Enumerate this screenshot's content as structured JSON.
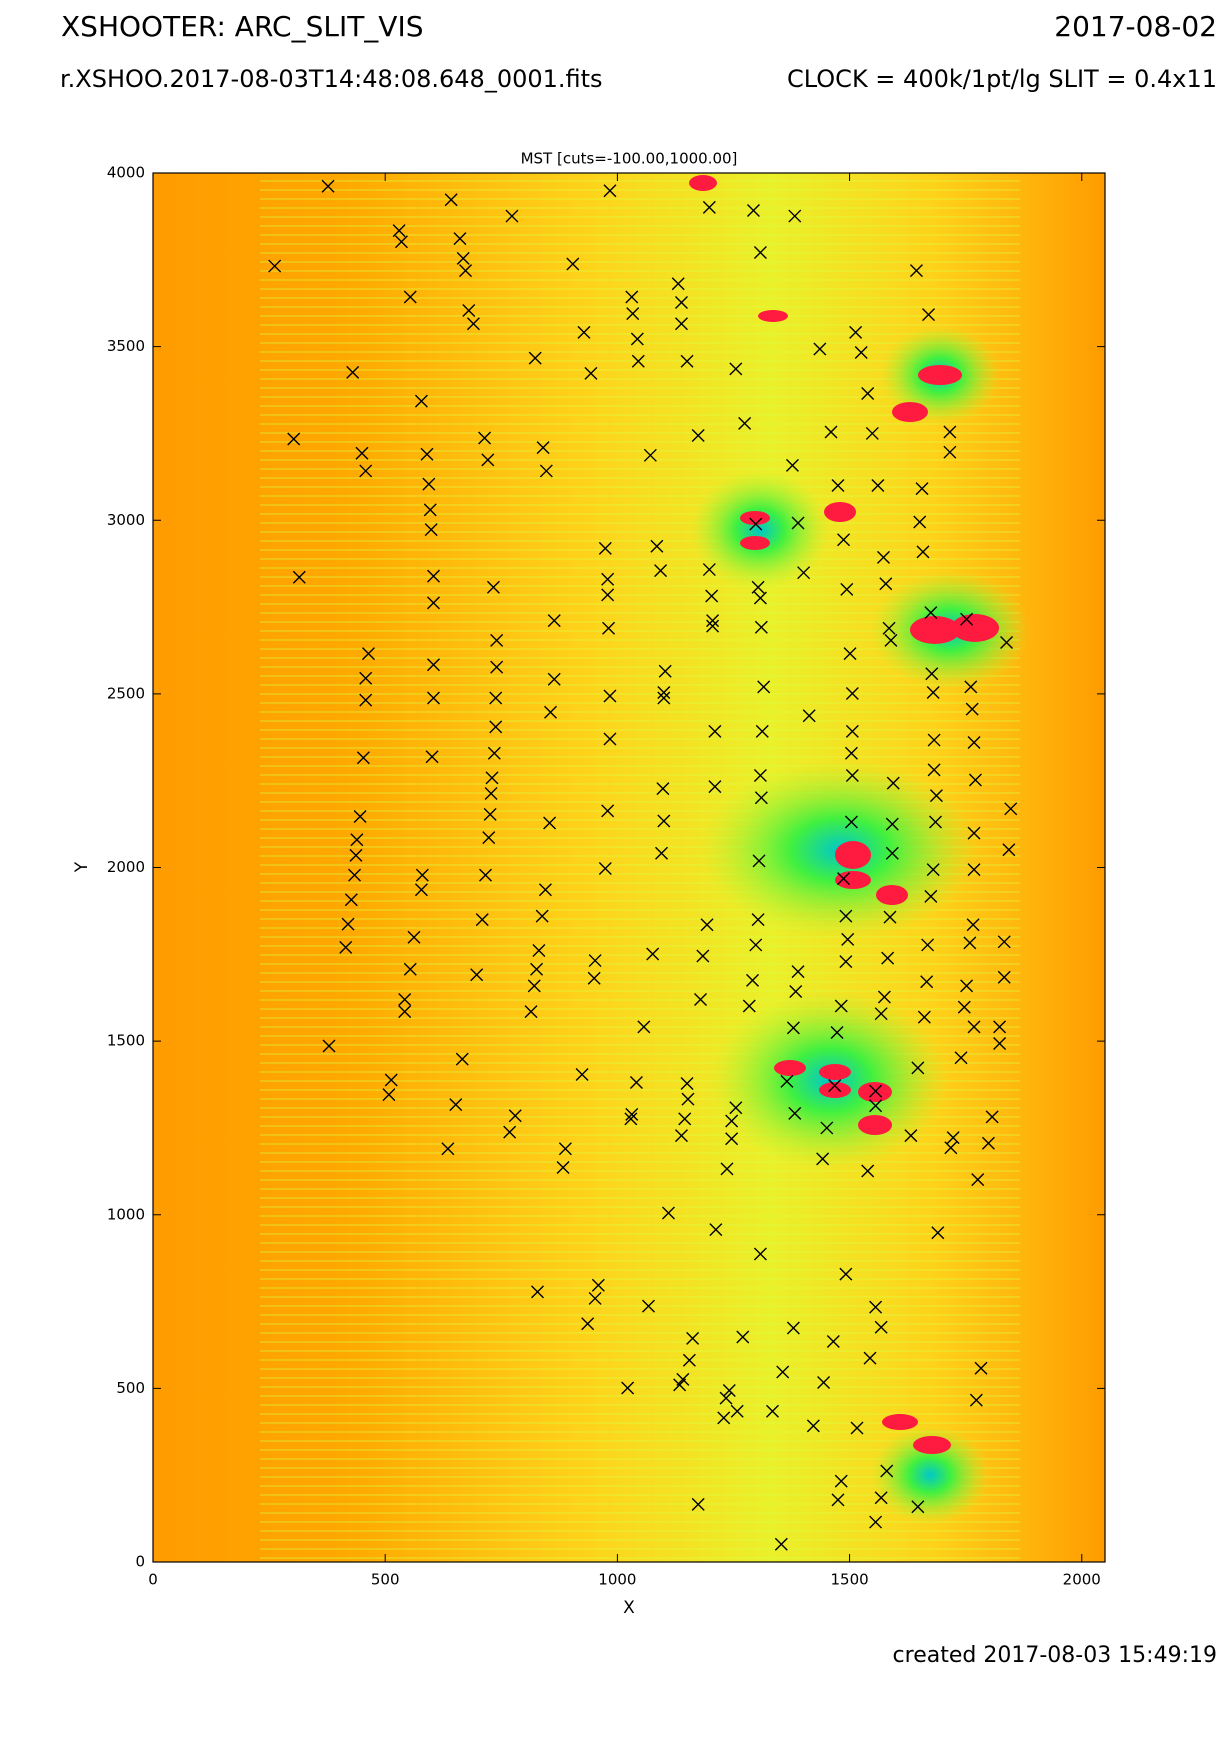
{
  "chart_data": {
    "type": "scatter",
    "title": "XSHOOTER: ARC_SLIT_VIS",
    "date": "2017-08-02",
    "subtitle": "r.XSHOO.2017-08-03T14:48:08.648_0001.fits",
    "settings": "CLOCK = 400k/1pt/lg SLIT = 0.4x11",
    "plot_title": "MST [cuts=-100.00,1000.00]",
    "footer": "created 2017-08-03 15:49:19",
    "xlabel": "X",
    "ylabel": "Y",
    "xlim": [
      0,
      2050
    ],
    "ylim": [
      0,
      4000
    ],
    "xticks": [
      0,
      500,
      1000,
      1500,
      2000
    ],
    "yticks": [
      0,
      500,
      1000,
      1500,
      2000,
      2500,
      3000,
      3500,
      4000
    ],
    "marker_color": "#000000",
    "x": [
      262,
      377,
      303,
      315,
      430,
      450,
      458,
      464,
      458,
      458,
      453,
      446,
      439,
      437,
      434,
      427,
      420,
      415,
      379,
      530,
      535,
      554,
      578,
      590,
      594,
      597,
      599,
      604,
      604,
      604,
      604,
      601,
      580,
      578,
      562,
      554,
      542,
      542,
      513,
      508,
      642,
      661,
      668,
      673,
      680,
      690,
      714,
      721,
      733,
      740,
      740,
      738,
      738,
      735,
      730,
      728,
      726,
      723,
      716,
      709,
      697,
      666,
      652,
      635,
      773,
      823,
      840,
      847,
      864,
      864,
      856,
      854,
      845,
      838,
      831,
      826,
      821,
      814,
      780,
      768,
      828,
      904,
      928,
      943,
      974,
      979,
      979,
      981,
      984,
      984,
      979,
      974,
      952,
      950,
      924,
      888,
      883,
      959,
      952,
      936,
      984,
      1031,
      1033,
      1043,
      1045,
      1071,
      1085,
      1093,
      1103,
      1100,
      1100,
      1098,
      1100,
      1095,
      1076,
      1057,
      1041,
      1031,
      1029,
      1110,
      1067,
      1022,
      1131,
      1138,
      1138,
      1150,
      1174,
      1198,
      1203,
      1205,
      1205,
      1210,
      1210,
      1193,
      1184,
      1179,
      1150,
      1152,
      1145,
      1138,
      1162,
      1155,
      1141,
      1134,
      1174,
      1198,
      1255,
      1274,
      1293,
      1308,
      1298,
      1303,
      1308,
      1310,
      1315,
      1312,
      1308,
      1310,
      1305,
      1303,
      1298,
      1291,
      1284,
      1255,
      1246,
      1246,
      1236,
      1241,
      1234,
      1229,
      1270,
      1308,
      1212,
      1258,
      1334,
      1382,
      1377,
      1389,
      1401,
      1413,
      1389,
      1384,
      1379,
      1365,
      1382,
      1379,
      1356,
      1353,
      1436,
      1460,
      1475,
      1487,
      1494,
      1501,
      1506,
      1506,
      1504,
      1506,
      1504,
      1487,
      1492,
      1496,
      1492,
      1482,
      1473,
      1468,
      1451,
      1442,
      1492,
      1465,
      1444,
      1422,
      1482,
      1475,
      1513,
      1525,
      1539,
      1549,
      1561,
      1573,
      1578,
      1585,
      1589,
      1594,
      1592,
      1592,
      1587,
      1582,
      1575,
      1568,
      1556,
      1556,
      1539,
      1556,
      1568,
      1544,
      1516,
      1580,
      1568,
      1556,
      1644,
      1670,
      1658,
      1651,
      1656,
      1675,
      1677,
      1680,
      1682,
      1682,
      1687,
      1685,
      1680,
      1675,
      1668,
      1666,
      1661,
      1647,
      1632,
      1690,
      1647,
      1716,
      1716,
      1723,
      1718,
      1740,
      1752,
      1761,
      1764,
      1768,
      1771,
      1768,
      1768,
      1766,
      1759,
      1752,
      1747,
      1768,
      1776,
      1783,
      1773,
      1838,
      1847,
      1843,
      1833,
      1833,
      1823,
      1823,
      1807,
      1799
    ],
    "y": [
      3732,
      3962,
      3234,
      2836,
      3426,
      3193,
      3142,
      2616,
      2545,
      2482,
      2316,
      2147,
      2080,
      2035,
      1978,
      1907,
      1837,
      1770,
      1486,
      3834,
      3802,
      3643,
      3343,
      3190,
      3104,
      3030,
      2973,
      2839,
      2762,
      2584,
      2488,
      2319,
      1978,
      1936,
      1799,
      1707,
      1620,
      1585,
      1388,
      1346,
      3923,
      3811,
      3754,
      3719,
      3604,
      3566,
      3237,
      3174,
      2807,
      2654,
      2577,
      2488,
      2405,
      2329,
      2258,
      2213,
      2153,
      2086,
      1978,
      1850,
      1691,
      1448,
      1317,
      1190,
      3876,
      3467,
      3209,
      3142,
      2711,
      2542,
      2447,
      2128,
      1936,
      1860,
      1761,
      1707,
      1659,
      1585,
      1285,
      1238,
      778,
      3738,
      3541,
      3423,
      2919,
      2830,
      2785,
      2689,
      2494,
      2370,
      2163,
      1997,
      1732,
      1681,
      1404,
      1190,
      1136,
      797,
      759,
      686,
      3949,
      3643,
      3595,
      3522,
      3458,
      3187,
      2925,
      2855,
      2565,
      2504,
      2488,
      2227,
      2134,
      2041,
      1751,
      1541,
      1381,
      1289,
      1276,
      1005,
      737,
      501,
      3681,
      3627,
      3566,
      3458,
      3244,
      2858,
      2782,
      2711,
      2695,
      2392,
      2233,
      1835,
      1745,
      1620,
      1378,
      1333,
      1276,
      1228,
      644,
      581,
      526,
      510,
      166,
      3901,
      3436,
      3279,
      3892,
      3771,
      2989,
      2807,
      2776,
      2692,
      2520,
      2392,
      2265,
      2201,
      2019,
      1850,
      1777,
      1675,
      1601,
      1308,
      1270,
      1219,
      1132,
      494,
      472,
      415,
      648,
      887,
      957,
      434,
      434,
      3876,
      3158,
      2992,
      2849,
      2437,
      1700,
      1643,
      1538,
      1384,
      1292,
      674,
      547,
      51,
      3493,
      3254,
      3100,
      2944,
      2801,
      2616,
      2501,
      2392,
      2329,
      2265,
      2131,
      1968,
      1860,
      1793,
      1729,
      1601,
      1525,
      1372,
      1250,
      1161,
      829,
      635,
      517,
      392,
      233,
      179,
      3541,
      3483,
      3365,
      3250,
      3100,
      2893,
      2817,
      2689,
      2654,
      2243,
      2125,
      2041,
      1857,
      1739,
      1627,
      1579,
      1356,
      1314,
      1126,
      734,
      676,
      587,
      386,
      262,
      185,
      115,
      3719,
      3592,
      2909,
      2995,
      3091,
      2734,
      2558,
      2504,
      2367,
      2281,
      2207,
      2131,
      1994,
      1917,
      1777,
      1671,
      1569,
      1423,
      1228,
      948,
      159,
      3254,
      3196,
      1222,
      1193,
      1452,
      2715,
      2520,
      2456,
      2360,
      2252,
      2099,
      1994,
      1835,
      1783,
      1659,
      1598,
      1541,
      1101,
      558,
      466,
      2648,
      2169,
      2051,
      1786,
      1684,
      1541,
      1493,
      1282,
      1206
    ]
  }
}
